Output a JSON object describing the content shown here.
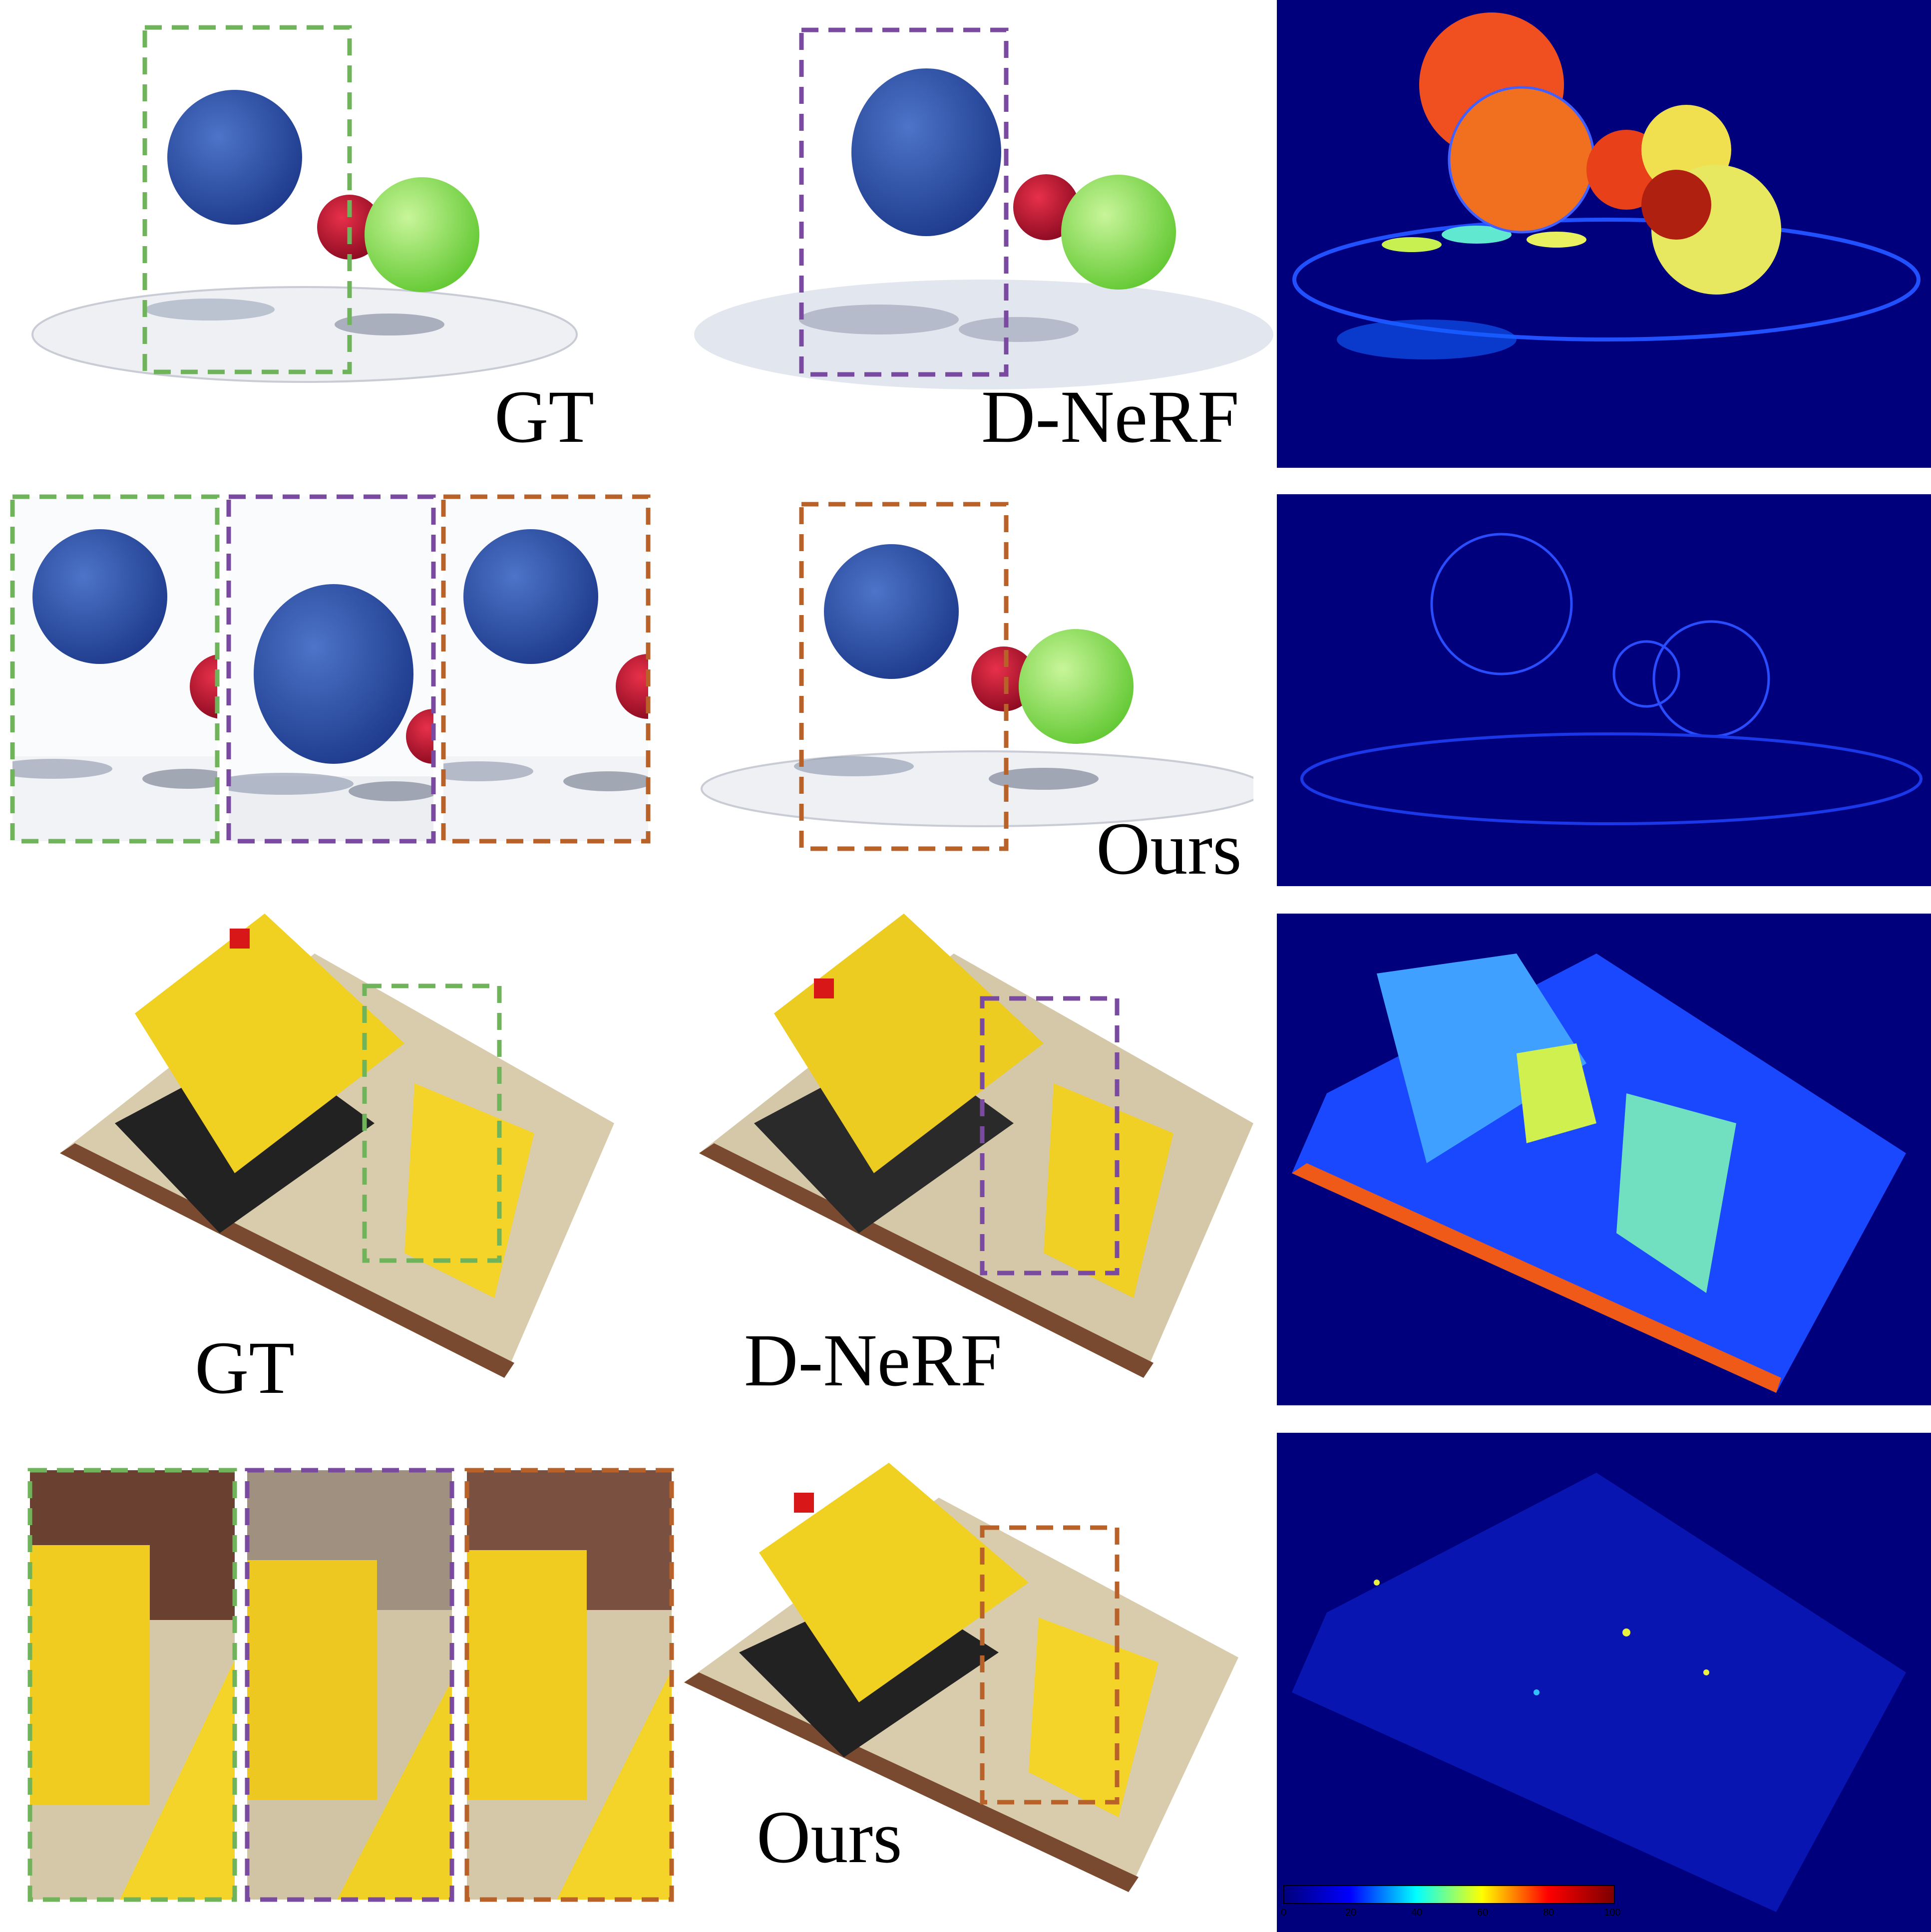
{
  "labels": {
    "gt_top": "GT",
    "dnerf_top": "D-NeRF",
    "ours_top": "Ours",
    "gt_bottom": "GT",
    "dnerf_bottom": "D-NeRF",
    "ours_bottom": "Ours"
  },
  "colorbar": {
    "ticks": [
      "0",
      "20",
      "40",
      "60",
      "80",
      "100"
    ],
    "colormap": "jet"
  },
  "colors": {
    "gt_box": "#6fb45a",
    "dnerf_box": "#7a4aa0",
    "ours_box": "#b8622a",
    "heatmap_bg": "#00007d"
  }
}
